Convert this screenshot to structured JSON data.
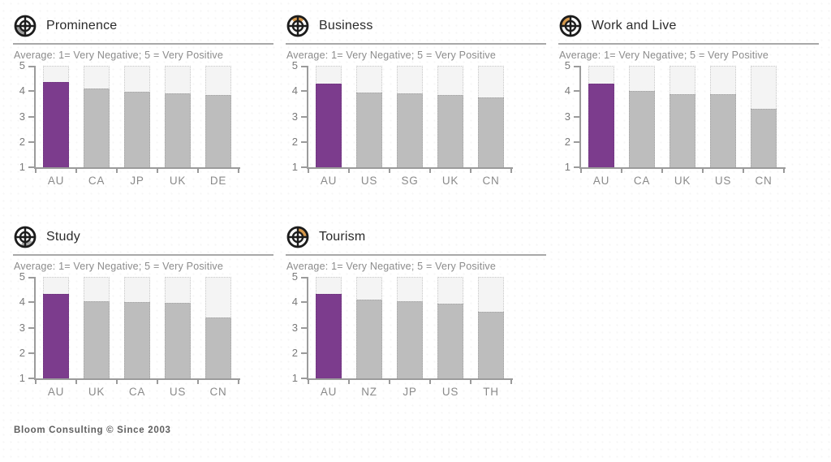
{
  "page": {
    "footer": "Bloom Consulting © Since 2003"
  },
  "colors": {
    "highlight": "#7C3C8D",
    "bar": "#BDBDBD",
    "bar_track_fill": "#F4F4F4",
    "bar_track_border": "#C9C9C9",
    "axis": "#9B9B9B",
    "icon_ink": "#1C1C1C",
    "icon_accent_orange": "#D69A4E",
    "icon_accent_gray": "#9E9E9E"
  },
  "chart_data": [
    {
      "type": "bar",
      "title": "Prominence",
      "subtitle": "Average: 1= Very Negative; 5 = Very Positive",
      "icon": {
        "name": "prominence-compass-icon",
        "accent_color": "#9E9E9E",
        "accent_angle": 225
      },
      "categories": [
        "AU",
        "CA",
        "JP",
        "UK",
        "DE"
      ],
      "values": [
        4.35,
        4.1,
        3.98,
        3.92,
        3.86
      ],
      "highlight_index": 0,
      "ylim": [
        1,
        5
      ],
      "yticks": [
        1,
        2,
        3,
        4,
        5
      ],
      "grid": false,
      "legend": "none"
    },
    {
      "type": "bar",
      "title": "Business",
      "subtitle": "Average: 1= Very Negative; 5 = Very Positive",
      "icon": {
        "name": "business-compass-icon",
        "accent_color": "#D69A4E",
        "accent_angle": 90
      },
      "categories": [
        "AU",
        "US",
        "SG",
        "UK",
        "CN"
      ],
      "values": [
        4.3,
        3.96,
        3.9,
        3.86,
        3.76
      ],
      "highlight_index": 0,
      "ylim": [
        1,
        5
      ],
      "yticks": [
        1,
        2,
        3,
        4,
        5
      ],
      "grid": false,
      "legend": "none"
    },
    {
      "type": "bar",
      "title": "Work and Live",
      "subtitle": "Average: 1= Very Negative; 5 = Very Positive",
      "icon": {
        "name": "work-and-live-compass-icon",
        "accent_color": "#D69A4E",
        "accent_angle": 135
      },
      "categories": [
        "AU",
        "CA",
        "UK",
        "US",
        "CN"
      ],
      "values": [
        4.3,
        4.0,
        3.88,
        3.88,
        3.3
      ],
      "highlight_index": 0,
      "ylim": [
        1,
        5
      ],
      "yticks": [
        1,
        2,
        3,
        4,
        5
      ],
      "grid": false,
      "legend": "none"
    },
    {
      "type": "bar",
      "title": "Study",
      "subtitle": "Average: 1= Very Negative; 5 = Very Positive",
      "icon": {
        "name": "study-compass-icon",
        "accent_color": "#A9A9A9",
        "accent_angle": 285
      },
      "categories": [
        "AU",
        "UK",
        "CA",
        "US",
        "CN"
      ],
      "values": [
        4.33,
        4.04,
        4.0,
        3.97,
        3.4
      ],
      "highlight_index": 0,
      "ylim": [
        1,
        5
      ],
      "yticks": [
        1,
        2,
        3,
        4,
        5
      ],
      "grid": false,
      "legend": "none"
    },
    {
      "type": "bar",
      "title": "Tourism",
      "subtitle": "Average: 1= Very Negative; 5 = Very Positive",
      "icon": {
        "name": "tourism-compass-icon",
        "accent_color": "#D69A4E",
        "accent_angle": 45
      },
      "categories": [
        "AU",
        "NZ",
        "JP",
        "US",
        "TH"
      ],
      "values": [
        4.33,
        4.09,
        4.04,
        3.93,
        3.64
      ],
      "highlight_index": 0,
      "ylim": [
        1,
        5
      ],
      "yticks": [
        1,
        2,
        3,
        4,
        5
      ],
      "grid": false,
      "legend": "none"
    }
  ]
}
